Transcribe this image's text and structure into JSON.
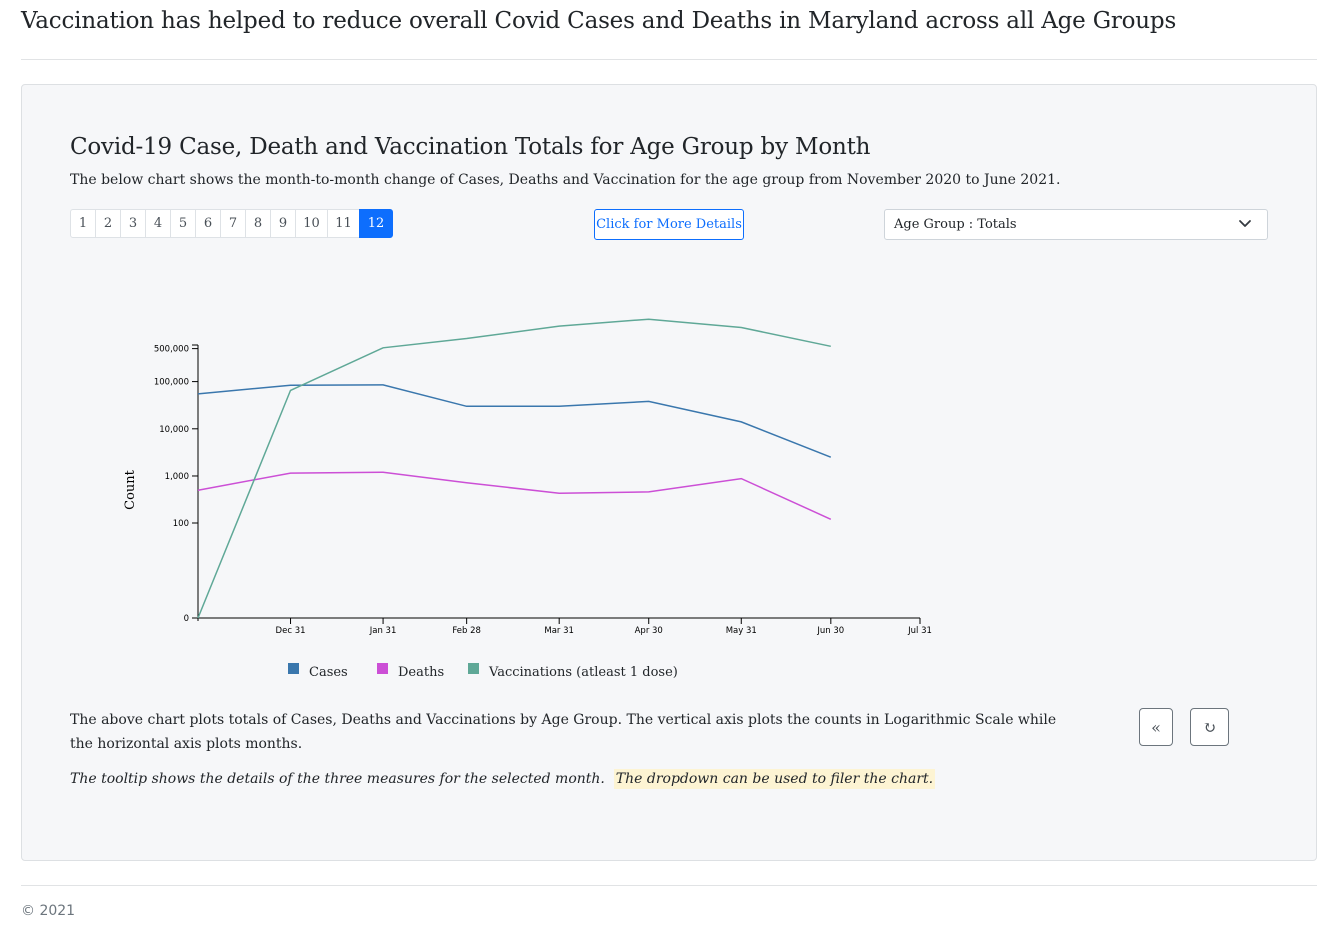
{
  "page": {
    "title": "Vaccination has helped to reduce overall Covid Cases and Deaths in Maryland across all Age Groups",
    "footer": "© 2021"
  },
  "panel": {
    "title": "Covid-19 Case, Death and Vaccination Totals for Age Group by Month",
    "description": "The below chart shows the month-to-month change of Cases, Deaths and Vaccination for the age group from November 2020 to June 2021.",
    "pages": [
      "1",
      "2",
      "3",
      "4",
      "5",
      "6",
      "7",
      "8",
      "9",
      "10",
      "11",
      "12"
    ],
    "active_page": "12",
    "details_button": "Click for More Details",
    "select_value": "Age Group : Totals",
    "note": "The above chart plots totals of Cases, Deaths and Vaccinations by Age Group. The vertical axis plots the counts in Logarithmic Scale while the horizontal axis plots months.",
    "tooltip_note": "The tooltip shows the details of the three measures for the selected month.",
    "dropdown_note": "The dropdown can be used to filer the chart.",
    "prev_icon": "«",
    "reset_icon": "↻"
  },
  "colors": {
    "cases": "#3a77ad",
    "deaths": "#cc4fd6",
    "vaccinations": "#5fa897",
    "accent": "#0d6efd"
  },
  "chart_data": {
    "type": "line",
    "title": "",
    "xlabel": "",
    "ylabel": "Count",
    "y_scale": "symlog",
    "x_ticks": [
      "Dec 31",
      "Jan 31",
      "Feb 28",
      "Mar 31",
      "Apr 30",
      "May 31",
      "Jun 30",
      "Jul 31"
    ],
    "y_ticks": [
      "0",
      "100",
      "1,000",
      "10,000",
      "100,000",
      "500,000"
    ],
    "x": [
      "2020-11-30",
      "2020-12-31",
      "2021-01-31",
      "2021-02-28",
      "2021-03-31",
      "2021-04-30",
      "2021-05-31",
      "2021-06-30"
    ],
    "series": [
      {
        "name": "Cases",
        "values": [
          55000,
          84000,
          85000,
          30000,
          30000,
          38000,
          14000,
          2500
        ]
      },
      {
        "name": "Deaths",
        "values": [
          500,
          1150,
          1200,
          720,
          430,
          460,
          880,
          120
        ]
      },
      {
        "name": "Vaccinations (atleast 1 dose)",
        "values": [
          0,
          65000,
          520000,
          820000,
          1500000,
          2100000,
          1400000,
          560000
        ]
      }
    ]
  }
}
